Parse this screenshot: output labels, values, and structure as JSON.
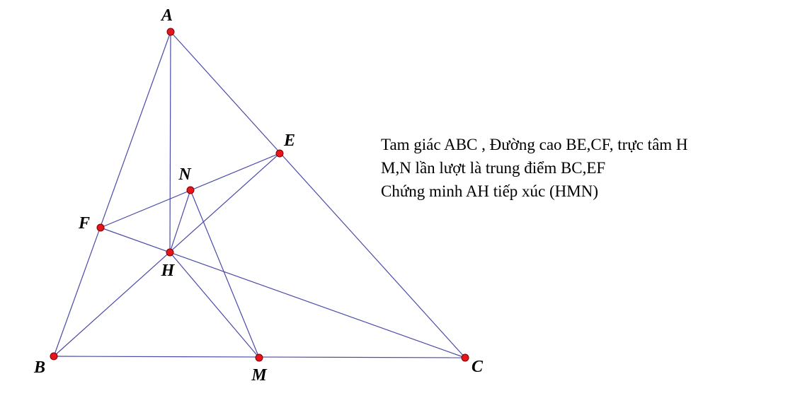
{
  "figure": {
    "colors": {
      "segment": "#4a4aa8",
      "point_fill": "#e8141c",
      "point_stroke": "#7a0000",
      "label": "#000000"
    },
    "points": [
      {
        "id": "A",
        "label": "A"
      },
      {
        "id": "B",
        "label": "B"
      },
      {
        "id": "C",
        "label": "C"
      },
      {
        "id": "E",
        "label": "E"
      },
      {
        "id": "F",
        "label": "F"
      },
      {
        "id": "H",
        "label": "H"
      },
      {
        "id": "M",
        "label": "M"
      },
      {
        "id": "N",
        "label": "N"
      }
    ],
    "segments": [
      [
        "A",
        "B"
      ],
      [
        "A",
        "C"
      ],
      [
        "B",
        "C"
      ],
      [
        "A",
        "H"
      ],
      [
        "B",
        "E"
      ],
      [
        "C",
        "F"
      ],
      [
        "E",
        "F"
      ],
      [
        "H",
        "N"
      ],
      [
        "H",
        "M"
      ],
      [
        "N",
        "M"
      ]
    ]
  },
  "problem": {
    "line1": "Tam giác ABC , Đường cao BE,CF, trực tâm H",
    "line2": "M,N lần lượt là trung điểm BC,EF",
    "line3": "Chứng minh AH tiếp xúc (HMN)"
  }
}
